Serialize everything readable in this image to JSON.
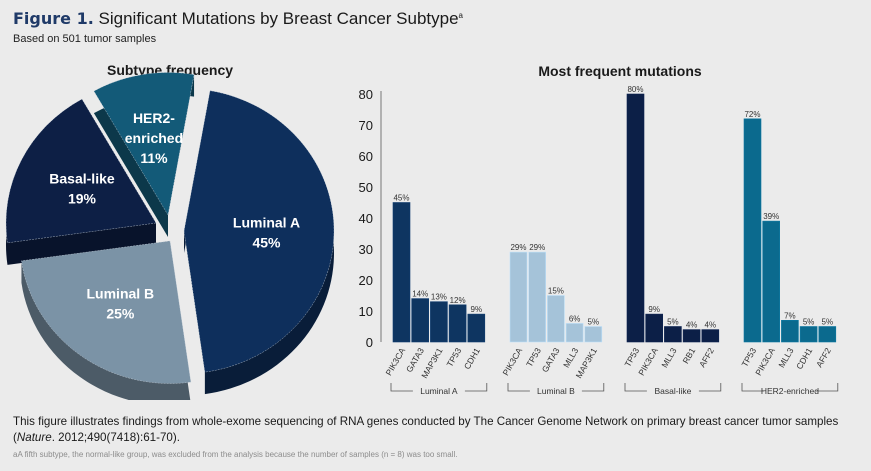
{
  "header": {
    "figure_label": "Figure 1.",
    "title": "Significant Mutations by Breast Cancer Subtype",
    "title_superscript": "a",
    "subtitle": "Based on 501 tumor samples"
  },
  "chart_data": [
    {
      "type": "pie",
      "title": "Subtype frequency",
      "slices": [
        {
          "label": "Luminal A",
          "value": 45,
          "display": "45%",
          "color": "#0e2f5c"
        },
        {
          "label": "Luminal B",
          "value": 25,
          "display": "25%",
          "color": "#7b93a6"
        },
        {
          "label": "Basal-like",
          "value": 19,
          "display": "19%",
          "color": "#0d1f45"
        },
        {
          "label": "HER2-enriched",
          "value": 11,
          "display": "11%",
          "color": "#135a78"
        }
      ]
    },
    {
      "type": "bar",
      "title": "Most frequent mutations",
      "ylim": [
        0,
        80
      ],
      "yticks": [
        0,
        10,
        20,
        30,
        40,
        50,
        60,
        70,
        80
      ],
      "grid": false,
      "groups": [
        {
          "name": "Luminal A",
          "color": "#0e3561",
          "categories": [
            "PIK3CA",
            "GATA3",
            "MAP3K1",
            "TP53",
            "CDH1"
          ],
          "values": [
            45,
            14,
            13,
            12,
            9
          ]
        },
        {
          "name": "Luminal B",
          "color": "#a5c3d9",
          "categories": [
            "PIK3CA",
            "TP53",
            "GATA3",
            "MLL3",
            "MAP3K1"
          ],
          "values": [
            29,
            29,
            15,
            6,
            5
          ]
        },
        {
          "name": "Basal-like",
          "color": "#0c1f47",
          "categories": [
            "TP53",
            "PIK3CA",
            "MLL3",
            "RB1",
            "AFF2"
          ],
          "values": [
            80,
            9,
            5,
            4,
            4
          ]
        },
        {
          "name": "HER2-enriched",
          "color": "#0b6a8e",
          "categories": [
            "TP53",
            "PIK3CA",
            "MLL3",
            "CDH1",
            "AFF2"
          ],
          "values": [
            72,
            39,
            7,
            5,
            5
          ]
        }
      ],
      "value_suffix": "%"
    }
  ],
  "footer": {
    "note_prefix": "This figure illustrates findings from whole-exome sequencing of RNA genes conducted by The Cancer Genome Network on primary breast cancer tumor samples (",
    "note_journal": "Nature",
    "note_suffix": ". 2012;490(7418):61-70).",
    "footnote": "aA fifth subtype, the normal-like group, was excluded from the analysis because the number of samples (n = 8) was too small."
  }
}
